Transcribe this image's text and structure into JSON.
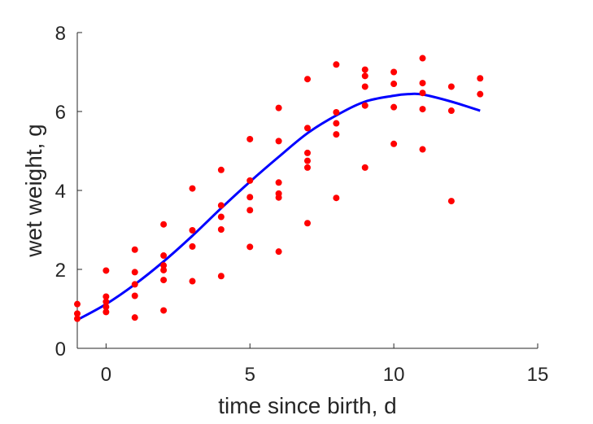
{
  "chart_data": {
    "type": "scatter",
    "title": "",
    "xlabel": "time since birth, d",
    "ylabel": "wet weight, g",
    "xlim": [
      -1,
      15
    ],
    "ylim": [
      0,
      8
    ],
    "xticks": [
      0,
      5,
      10,
      15
    ],
    "yticks": [
      0,
      2,
      4,
      6,
      8
    ],
    "xtick_labels": [
      "0",
      "5",
      "10",
      "15"
    ],
    "ytick_labels": [
      "0",
      "2",
      "4",
      "6",
      "8"
    ],
    "grid": false,
    "legend": "none",
    "series": [
      {
        "type": "scatter",
        "color": "#ff0000",
        "points": [
          [
            -1,
            1.12
          ],
          [
            -1,
            0.88
          ],
          [
            -1,
            0.75
          ],
          [
            0,
            1.97
          ],
          [
            0,
            1.31
          ],
          [
            0,
            1.18
          ],
          [
            0,
            1.05
          ],
          [
            0,
            0.92
          ],
          [
            1,
            2.5
          ],
          [
            1,
            1.93
          ],
          [
            1,
            1.62
          ],
          [
            1,
            1.33
          ],
          [
            1,
            0.78
          ],
          [
            2,
            3.14
          ],
          [
            2,
            2.35
          ],
          [
            2,
            2.1
          ],
          [
            2,
            1.98
          ],
          [
            2,
            1.73
          ],
          [
            2,
            0.96
          ],
          [
            3,
            4.05
          ],
          [
            3,
            2.99
          ],
          [
            3,
            2.58
          ],
          [
            3,
            1.7
          ],
          [
            4,
            4.52
          ],
          [
            4,
            3.62
          ],
          [
            4,
            3.33
          ],
          [
            4,
            3.01
          ],
          [
            4,
            1.83
          ],
          [
            5,
            5.3
          ],
          [
            5,
            4.25
          ],
          [
            5,
            3.83
          ],
          [
            5,
            3.5
          ],
          [
            5,
            2.57
          ],
          [
            6,
            6.09
          ],
          [
            6,
            5.25
          ],
          [
            6,
            4.2
          ],
          [
            6,
            3.92
          ],
          [
            6,
            3.82
          ],
          [
            6,
            2.45
          ],
          [
            7,
            6.82
          ],
          [
            7,
            5.58
          ],
          [
            7,
            4.95
          ],
          [
            7,
            4.75
          ],
          [
            7,
            4.58
          ],
          [
            7,
            3.17
          ],
          [
            8,
            7.19
          ],
          [
            8,
            5.98
          ],
          [
            8,
            5.7
          ],
          [
            8,
            5.42
          ],
          [
            8,
            3.81
          ],
          [
            9,
            7.06
          ],
          [
            9,
            6.9
          ],
          [
            9,
            6.63
          ],
          [
            9,
            6.15
          ],
          [
            9,
            4.58
          ],
          [
            10,
            7.0
          ],
          [
            10,
            6.7
          ],
          [
            10,
            6.11
          ],
          [
            10,
            5.18
          ],
          [
            11,
            7.35
          ],
          [
            11,
            6.72
          ],
          [
            11,
            6.47
          ],
          [
            11,
            6.06
          ],
          [
            11,
            5.04
          ],
          [
            12,
            6.63
          ],
          [
            12,
            6.02
          ],
          [
            12,
            3.73
          ],
          [
            13,
            6.84
          ],
          [
            13,
            6.44
          ]
        ]
      },
      {
        "type": "line",
        "color": "#0000ff",
        "points": [
          [
            -1,
            0.72
          ],
          [
            0,
            1.12
          ],
          [
            1,
            1.62
          ],
          [
            2,
            2.2
          ],
          [
            3,
            2.85
          ],
          [
            4,
            3.55
          ],
          [
            5,
            4.22
          ],
          [
            6,
            4.85
          ],
          [
            7,
            5.45
          ],
          [
            8,
            5.9
          ],
          [
            9,
            6.25
          ],
          [
            10,
            6.4
          ],
          [
            10.5,
            6.44
          ],
          [
            11,
            6.43
          ],
          [
            12,
            6.25
          ],
          [
            13,
            6.02
          ]
        ]
      }
    ]
  }
}
